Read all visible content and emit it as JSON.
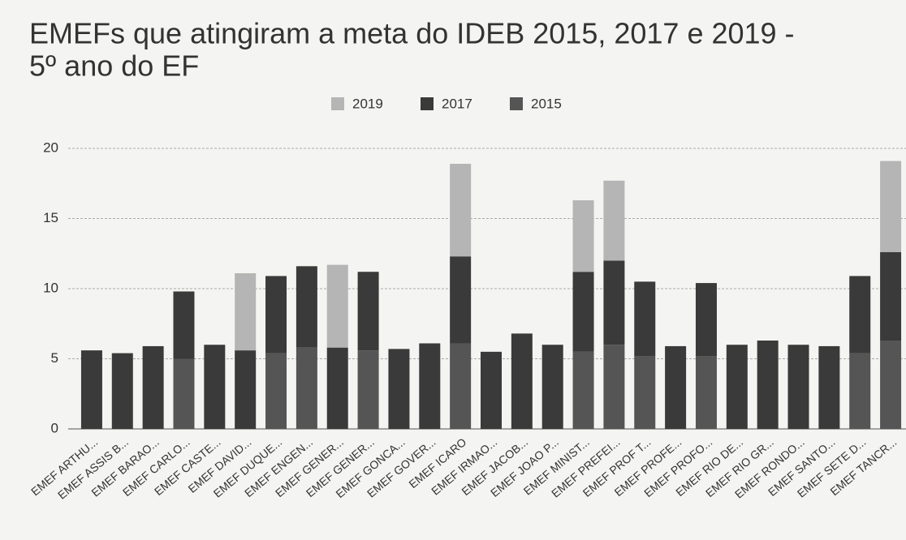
{
  "chart_data": {
    "type": "stacked_bar",
    "title": "EMEFs que atingiram a meta do IDEB 2015, 2017 e 2019 -",
    "subtitle": "5º ano do EF",
    "categories": [
      "EMEF ARTHU...",
      "EMEF ASSIS B...",
      "EMEF BARAO...",
      "EMEF CARLO...",
      "EMEF CASTE...",
      "EMEF DAVID...",
      "EMEF DUQUE...",
      "EMEF ENGEN...",
      "EMEF GENER...",
      "EMEF GENER...",
      "EMEF GONCA...",
      "EMEF GOVER...",
      "EMEF ICARO",
      "EMEF IRMAO...",
      "EMEF JACOB...",
      "EMEF JOAO P...",
      "EMEF MINIST...",
      "EMEF PREFEI...",
      "EMEF PROF T...",
      "EMEF PROFE...",
      "EMEF PROFO...",
      "EMEF RIO DE...",
      "EMEF RIO GR...",
      "EMEF RONDO...",
      "EMEF SANTO...",
      "EMEF SETE D...",
      "EMEF TANCR..."
    ],
    "series": [
      {
        "name": "2015",
        "color": "#555555",
        "values": [
          null,
          null,
          null,
          5.0,
          null,
          null,
          5.4,
          5.8,
          null,
          5.6,
          null,
          null,
          6.1,
          null,
          null,
          null,
          5.5,
          6.0,
          5.2,
          null,
          5.2,
          null,
          null,
          null,
          null,
          5.4,
          6.3
        ]
      },
      {
        "name": "2017",
        "color": "#3a3a3a",
        "values": [
          5.6,
          5.4,
          5.9,
          4.8,
          6.0,
          5.6,
          5.5,
          5.8,
          5.8,
          5.6,
          5.7,
          6.1,
          6.2,
          5.5,
          6.8,
          6.0,
          5.7,
          6.0,
          5.3,
          5.9,
          5.2,
          6.0,
          6.3,
          6.0,
          5.9,
          5.5,
          6.3
        ]
      },
      {
        "name": "2019",
        "color": "#b5b5b5",
        "values": [
          null,
          null,
          null,
          null,
          null,
          5.5,
          null,
          null,
          5.9,
          null,
          null,
          null,
          6.6,
          null,
          null,
          null,
          5.1,
          5.7,
          null,
          null,
          null,
          null,
          null,
          null,
          null,
          null,
          6.5
        ]
      }
    ],
    "legend_order": [
      "2019",
      "2017",
      "2015"
    ],
    "ylim": [
      0,
      20
    ],
    "yticks": [
      0,
      5,
      10,
      15,
      20
    ],
    "grid": true,
    "legend": "top"
  }
}
